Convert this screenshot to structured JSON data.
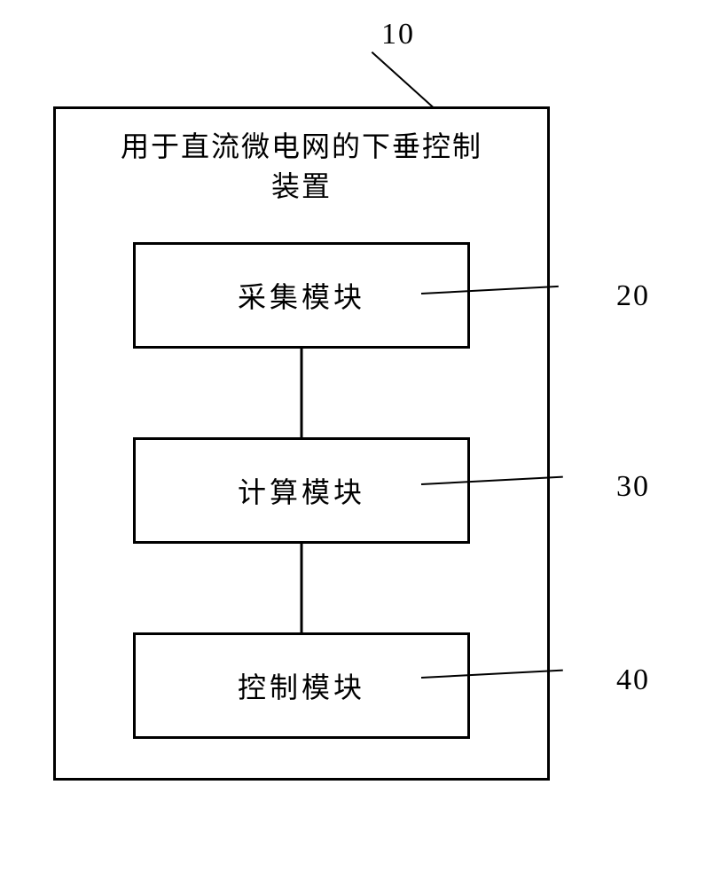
{
  "diagram": {
    "outer_label": "10",
    "title_line1": "用于直流微电网的下垂控制",
    "title_line2": "装置",
    "modules": [
      {
        "label": "采集模块",
        "number": "20"
      },
      {
        "label": "计算模块",
        "number": "30"
      },
      {
        "label": "控制模块",
        "number": "40"
      }
    ],
    "styling": {
      "box_border_color": "#000000",
      "box_border_width": 3,
      "background_color": "#ffffff",
      "font_family": "SimSun",
      "title_fontsize": 32,
      "module_fontsize": 32,
      "label_fontsize": 34,
      "connector_width": 3,
      "outer_box_width": 560,
      "outer_box_height": 760,
      "module_box_width": 380,
      "module_box_height": 120,
      "module_gap": 100
    }
  }
}
